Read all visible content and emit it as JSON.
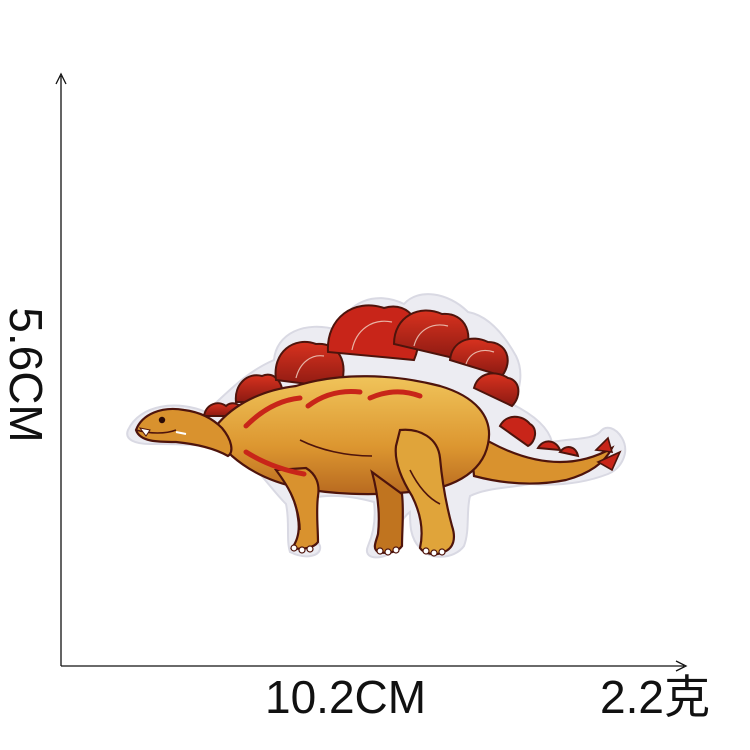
{
  "dimensions": {
    "height_label": "5.6CM",
    "width_label": "10.2CM",
    "weight_label": "2.2克"
  },
  "patch": {
    "icon": "stegosaurus-embroidered-patch",
    "colors": {
      "body": "#d9922e",
      "belly": "#f0c45a",
      "plates": "#c82519",
      "plates_dark": "#8c1a12",
      "outline": "#5a1a10",
      "border": "#e9e9ef"
    }
  }
}
